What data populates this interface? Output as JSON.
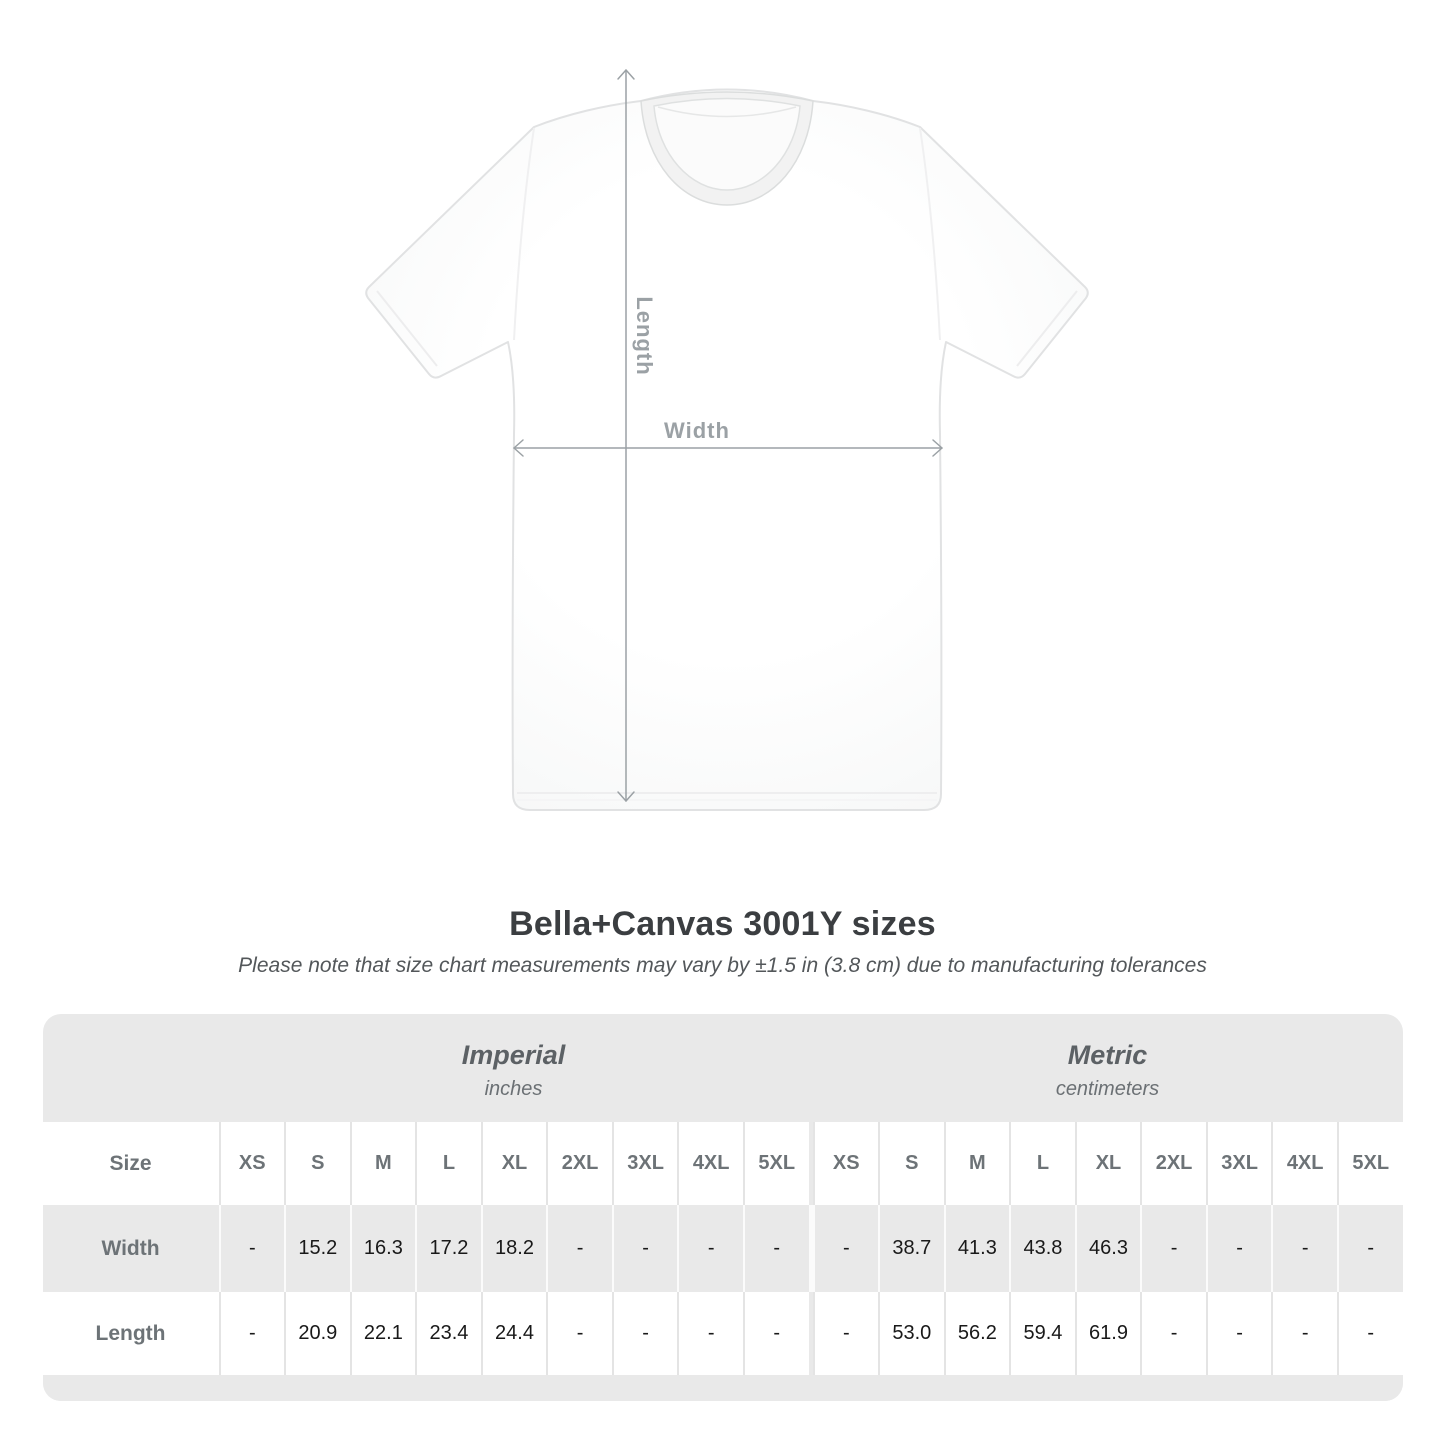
{
  "page": {
    "background": "#ffffff"
  },
  "diagram": {
    "length_label": "Length",
    "width_label": "Width",
    "line_color": "#9ba1a5"
  },
  "heading": {
    "title": "Bella+Canvas 3001Y sizes",
    "subtitle": "Please note that size chart measurements may vary by ±1.5 in (3.8 cm) due to manufacturing tolerances"
  },
  "size_table": {
    "colors": {
      "container_bg": "#e9e9e9",
      "white_row_bg": "#ffffff",
      "zebra_row_bg": "#e9e9e9",
      "label_text": "#6d7377",
      "value_text": "#191919",
      "section_header_text": "#5c6165"
    },
    "size_header_label": "Size",
    "sections": [
      {
        "name": "Imperial",
        "unit": "inches"
      },
      {
        "name": "Metric",
        "unit": "centimeters"
      }
    ],
    "sizes": [
      "XS",
      "S",
      "M",
      "L",
      "XL",
      "2XL",
      "3XL",
      "4XL",
      "5XL"
    ],
    "rows": [
      {
        "label": "Width",
        "imperial": [
          "-",
          "15.2",
          "16.3",
          "17.2",
          "18.2",
          "-",
          "-",
          "-",
          "-"
        ],
        "metric": [
          "-",
          "38.7",
          "41.3",
          "43.8",
          "46.3",
          "-",
          "-",
          "-",
          "-"
        ]
      },
      {
        "label": "Length",
        "imperial": [
          "-",
          "20.9",
          "22.1",
          "23.4",
          "24.4",
          "-",
          "-",
          "-",
          "-"
        ],
        "metric": [
          "-",
          "53.0",
          "56.2",
          "59.4",
          "61.9",
          "-",
          "-",
          "-",
          "-"
        ]
      }
    ]
  },
  "chart_data": {
    "type": "table",
    "title": "Bella+Canvas 3001Y sizes",
    "subtitle": "Please note that size chart measurements may vary by ±1.5 in (3.8 cm) due to manufacturing tolerances",
    "columns": [
      "Size",
      "XS",
      "S",
      "M",
      "L",
      "XL",
      "2XL",
      "3XL",
      "4XL",
      "5XL"
    ],
    "sections": [
      {
        "name": "Imperial",
        "unit": "inches",
        "rows": [
          {
            "label": "Width",
            "values": [
              "-",
              "15.2",
              "16.3",
              "17.2",
              "18.2",
              "-",
              "-",
              "-",
              "-"
            ]
          },
          {
            "label": "Length",
            "values": [
              "-",
              "20.9",
              "22.1",
              "23.4",
              "24.4",
              "-",
              "-",
              "-",
              "-"
            ]
          }
        ]
      },
      {
        "name": "Metric",
        "unit": "centimeters",
        "rows": [
          {
            "label": "Width",
            "values": [
              "-",
              "38.7",
              "41.3",
              "43.8",
              "46.3",
              "-",
              "-",
              "-",
              "-"
            ]
          },
          {
            "label": "Length",
            "values": [
              "-",
              "53.0",
              "56.2",
              "59.4",
              "61.9",
              "-",
              "-",
              "-",
              "-"
            ]
          }
        ]
      }
    ]
  }
}
